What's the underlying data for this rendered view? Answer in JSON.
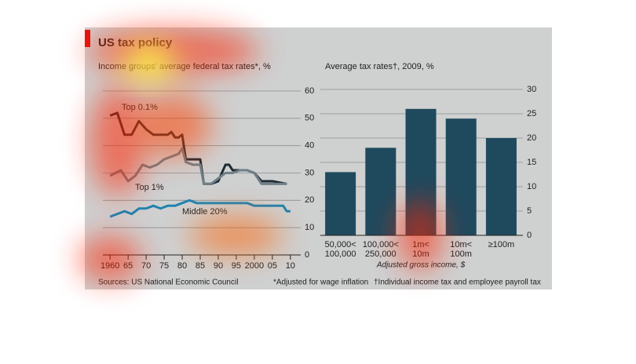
{
  "title": "US tax policy",
  "source": "Sources: US National Economic Council",
  "footnotes": [
    "*Adjusted for wage inflation",
    "†Individual income tax and employee payroll tax"
  ],
  "chart_data": [
    {
      "type": "line",
      "title": "Income groups' average federal tax rates*, %",
      "xlim": [
        1958,
        2012
      ],
      "xticks": [
        1960,
        {
          "value": 1965,
          "label": "65"
        },
        {
          "value": 1970,
          "label": "70"
        },
        {
          "value": 1975,
          "label": "75"
        },
        {
          "value": 1980,
          "label": "80"
        },
        {
          "value": 1985,
          "label": "85"
        },
        {
          "value": 1990,
          "label": "90"
        },
        {
          "value": 1995,
          "label": "95"
        },
        2000,
        {
          "value": 2005,
          "label": "05"
        },
        {
          "value": 2010,
          "label": "10"
        }
      ],
      "ylim": [
        0,
        60
      ],
      "yticks": [
        0,
        10,
        20,
        30,
        40,
        50,
        60
      ],
      "grid": true,
      "series": [
        {
          "name": "Top 0.1%",
          "color": "#1d2a33",
          "x": [
            1960,
            1962,
            1964,
            1966,
            1968,
            1970,
            1972,
            1974,
            1976,
            1977,
            1978,
            1979,
            1980,
            1981,
            1982,
            1985,
            1986,
            1988,
            1990,
            1992,
            1993,
            1994,
            1998,
            2000,
            2002,
            2005,
            2009
          ],
          "values": [
            51,
            52,
            44,
            44,
            49,
            46,
            44,
            44,
            44,
            45,
            43,
            43,
            44,
            35,
            35,
            35,
            26,
            26,
            27,
            33,
            33,
            31,
            31,
            30,
            27,
            27,
            26
          ]
        },
        {
          "name": "Top 1%",
          "color": "#6f7f88",
          "x": [
            1960,
            1963,
            1965,
            1967,
            1969,
            1971,
            1973,
            1975,
            1977,
            1979,
            1980,
            1981,
            1983,
            1985,
            1986,
            1988,
            1990,
            1992,
            1994,
            1996,
            1998,
            2000,
            2002,
            2005,
            2009
          ],
          "values": [
            29,
            31,
            27,
            29,
            33,
            32,
            33,
            35,
            36,
            37,
            39,
            34,
            33,
            33,
            26,
            26,
            28,
            30,
            30,
            31,
            31,
            30,
            26,
            26,
            26
          ]
        },
        {
          "name": "Middle 20%",
          "color": "#1f84b0",
          "x": [
            1960,
            1962,
            1964,
            1966,
            1968,
            1970,
            1972,
            1974,
            1976,
            1978,
            1980,
            1982,
            1984,
            1986,
            1988,
            1990,
            1992,
            1994,
            1996,
            1998,
            2000,
            2002,
            2004,
            2006,
            2008,
            2009,
            2010
          ],
          "values": [
            14,
            15,
            16,
            15,
            17,
            17,
            18,
            17,
            18,
            18,
            19,
            20,
            19,
            19,
            19,
            19,
            19,
            19,
            19,
            19,
            18,
            18,
            18,
            18,
            18,
            16,
            16
          ]
        }
      ]
    },
    {
      "type": "bar",
      "title": "Average tax rates†, 2009, %",
      "categories": [
        [
          "50,000<",
          "100,000"
        ],
        [
          "100,000<",
          "250,000"
        ],
        [
          "1m<",
          "10m"
        ],
        [
          "10m<",
          "100m"
        ],
        [
          "≥100m"
        ]
      ],
      "values": [
        13,
        18,
        26,
        24,
        20
      ],
      "color": "#1f4a5e",
      "xlabel": "Adjusted gross income, $",
      "ylim": [
        0,
        30
      ],
      "yticks": [
        0,
        5,
        10,
        15,
        20,
        25,
        30
      ],
      "grid": true
    }
  ]
}
